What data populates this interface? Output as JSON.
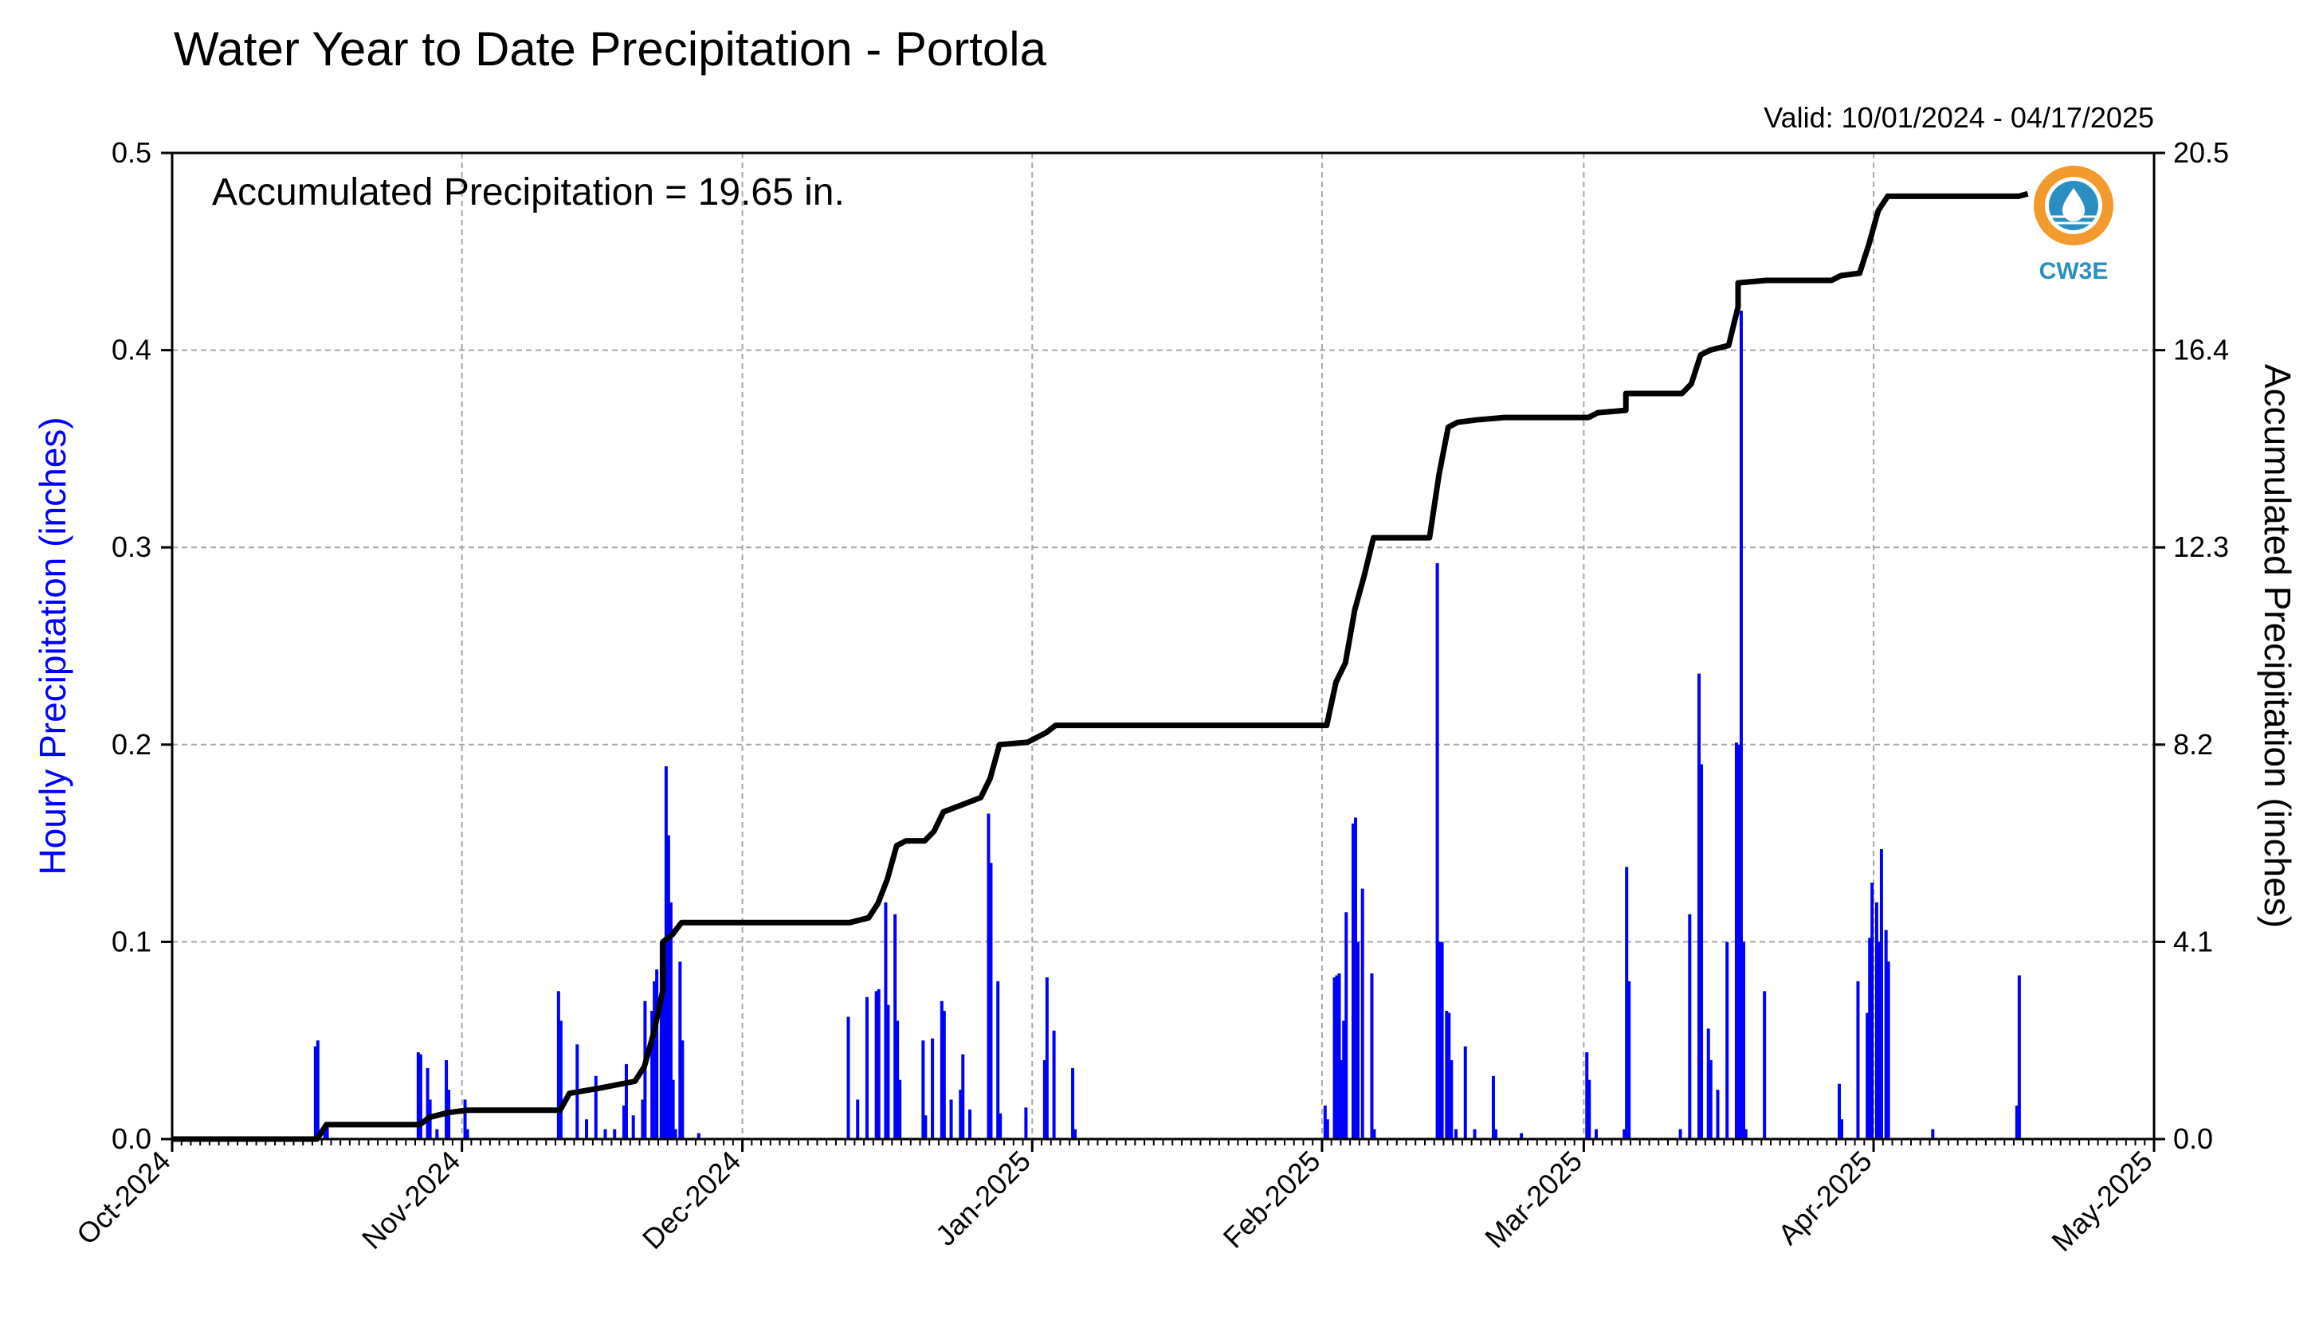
{
  "chart_data": {
    "type": "bar",
    "title": "Water Year to Date Precipitation - Portola",
    "valid_text": "Valid: 10/01/2024 - 04/17/2025",
    "annotation": "Accumulated Precipitation = 19.65 in.",
    "ylabel": "Hourly Precipitation (inches)",
    "y2label": "Accumulated Precipitation (inches)",
    "ylim": [
      0,
      0.5
    ],
    "y2lim": [
      0,
      20.5
    ],
    "yticks": [
      "0.0",
      "0.1",
      "0.2",
      "0.3",
      "0.4",
      "0.5"
    ],
    "y2ticks": [
      "0.0",
      "4.1",
      "8.2",
      "12.3",
      "16.4",
      "20.5"
    ],
    "xlim": [
      "2024-10-01",
      "2025-05-01"
    ],
    "xticks": [
      "Oct-2024",
      "Nov-2024",
      "Dec-2024",
      "Jan-2025",
      "Feb-2025",
      "Mar-2025",
      "Apr-2025",
      "May-2025"
    ],
    "grid": true,
    "bar_color": "#0000ff",
    "line_color": "#000000",
    "ylabel_color": "#0000ff",
    "logo_text": "CW3E",
    "series": [
      {
        "type": "bar",
        "points": [
          [
            "2024-10-16",
            0.047
          ],
          [
            "2024-10-16",
            0.05
          ],
          [
            "2024-10-17",
            0.005
          ],
          [
            "2024-10-17",
            0.008
          ],
          [
            "2024-10-27",
            0.044
          ],
          [
            "2024-10-27",
            0.043
          ],
          [
            "2024-10-28",
            0.036
          ],
          [
            "2024-10-28",
            0.02
          ],
          [
            "2024-10-29",
            0.005
          ],
          [
            "2024-10-30",
            0.04
          ],
          [
            "2024-10-30",
            0.025
          ],
          [
            "2024-11-01",
            0.02
          ],
          [
            "2024-11-01",
            0.005
          ],
          [
            "2024-11-11",
            0.075
          ],
          [
            "2024-11-11",
            0.06
          ],
          [
            "2024-11-13",
            0.048
          ],
          [
            "2024-11-14",
            0.01
          ],
          [
            "2024-11-15",
            0.032
          ],
          [
            "2024-11-16",
            0.005
          ],
          [
            "2024-11-17",
            0.005
          ],
          [
            "2024-11-18",
            0.017
          ],
          [
            "2024-11-18",
            0.038
          ],
          [
            "2024-11-19",
            0.012
          ],
          [
            "2024-11-20",
            0.02
          ],
          [
            "2024-11-20",
            0.07
          ],
          [
            "2024-11-21",
            0.065
          ],
          [
            "2024-11-21",
            0.08
          ],
          [
            "2024-11-21",
            0.086
          ],
          [
            "2024-11-22",
            0.1
          ],
          [
            "2024-11-22",
            0.09
          ],
          [
            "2024-11-22",
            0.189
          ],
          [
            "2024-11-22",
            0.154
          ],
          [
            "2024-11-22",
            0.12
          ],
          [
            "2024-11-23",
            0.06
          ],
          [
            "2024-11-23",
            0.03
          ],
          [
            "2024-11-23",
            0.005
          ],
          [
            "2024-11-24",
            0.09
          ],
          [
            "2024-11-24",
            0.05
          ],
          [
            "2024-11-26",
            0.003
          ],
          [
            "2024-12-12",
            0.062
          ],
          [
            "2024-12-13",
            0.02
          ],
          [
            "2024-12-14",
            0.072
          ],
          [
            "2024-12-15",
            0.075
          ],
          [
            "2024-12-15",
            0.076
          ],
          [
            "2024-12-16",
            0.12
          ],
          [
            "2024-12-16",
            0.068
          ],
          [
            "2024-12-17",
            0.114
          ],
          [
            "2024-12-17",
            0.06
          ],
          [
            "2024-12-17",
            0.03
          ],
          [
            "2024-12-20",
            0.05
          ],
          [
            "2024-12-20",
            0.012
          ],
          [
            "2024-12-21",
            0.051
          ],
          [
            "2024-12-22",
            0.07
          ],
          [
            "2024-12-22",
            0.065
          ],
          [
            "2024-12-23",
            0.02
          ],
          [
            "2024-12-24",
            0.025
          ],
          [
            "2024-12-24",
            0.043
          ],
          [
            "2024-12-25",
            0.015
          ],
          [
            "2024-12-27",
            0.165
          ],
          [
            "2024-12-27",
            0.14
          ],
          [
            "2024-12-28",
            0.08
          ],
          [
            "2024-12-28",
            0.013
          ],
          [
            "2024-12-31",
            0.016
          ],
          [
            "2025-01-02",
            0.04
          ],
          [
            "2025-01-02",
            0.082
          ],
          [
            "2025-01-03",
            0.055
          ],
          [
            "2025-01-05",
            0.036
          ],
          [
            "2025-01-05",
            0.005
          ],
          [
            "2025-02-01",
            0.017
          ],
          [
            "2025-02-01",
            0.01
          ],
          [
            "2025-02-02",
            0.082
          ],
          [
            "2025-02-02",
            0.083
          ],
          [
            "2025-02-02",
            0.084
          ],
          [
            "2025-02-02",
            0.04
          ],
          [
            "2025-02-03",
            0.06
          ],
          [
            "2025-02-03",
            0.115
          ],
          [
            "2025-02-04",
            0.16
          ],
          [
            "2025-02-04",
            0.163
          ],
          [
            "2025-02-04",
            0.1
          ],
          [
            "2025-02-05",
            0.127
          ],
          [
            "2025-02-06",
            0.084
          ],
          [
            "2025-02-06",
            0.005
          ],
          [
            "2025-02-13",
            0.292
          ],
          [
            "2025-02-13",
            0.1
          ],
          [
            "2025-02-13",
            0.1
          ],
          [
            "2025-02-14",
            0.065
          ],
          [
            "2025-02-14",
            0.064
          ],
          [
            "2025-02-14",
            0.04
          ],
          [
            "2025-02-15",
            0.005
          ],
          [
            "2025-02-16",
            0.047
          ],
          [
            "2025-02-17",
            0.005
          ],
          [
            "2025-02-19",
            0.032
          ],
          [
            "2025-02-19",
            0.005
          ],
          [
            "2025-02-22",
            0.003
          ],
          [
            "2025-03-01",
            0.044
          ],
          [
            "2025-03-01",
            0.03
          ],
          [
            "2025-03-02",
            0.005
          ],
          [
            "2025-03-05",
            0.005
          ],
          [
            "2025-03-05",
            0.138
          ],
          [
            "2025-03-05",
            0.08
          ],
          [
            "2025-03-11",
            0.005
          ],
          [
            "2025-03-12",
            0.114
          ],
          [
            "2025-03-13",
            0.236
          ],
          [
            "2025-03-13",
            0.19
          ],
          [
            "2025-03-14",
            0.056
          ],
          [
            "2025-03-14",
            0.04
          ],
          [
            "2025-03-15",
            0.025
          ],
          [
            "2025-03-16",
            0.1
          ],
          [
            "2025-03-17",
            0.201
          ],
          [
            "2025-03-17",
            0.2
          ],
          [
            "2025-03-17",
            0.42
          ],
          [
            "2025-03-17",
            0.1
          ],
          [
            "2025-03-18",
            0.005
          ],
          [
            "2025-03-20",
            0.075
          ],
          [
            "2025-03-28",
            0.028
          ],
          [
            "2025-03-28",
            0.01
          ],
          [
            "2025-03-30",
            0.08
          ],
          [
            "2025-03-31",
            0.064
          ],
          [
            "2025-03-31",
            0.102
          ],
          [
            "2025-03-31",
            0.13
          ],
          [
            "2025-04-01",
            0.12
          ],
          [
            "2025-04-01",
            0.1
          ],
          [
            "2025-04-01",
            0.147
          ],
          [
            "2025-04-02",
            0.106
          ],
          [
            "2025-04-02",
            0.09
          ],
          [
            "2025-04-07",
            0.005
          ],
          [
            "2025-04-16",
            0.017
          ],
          [
            "2025-04-16",
            0.083
          ]
        ]
      },
      {
        "type": "line",
        "points": [
          [
            "2024-10-01",
            0.0
          ],
          [
            "2024-10-16",
            0.0
          ],
          [
            "2024-10-17",
            0.3
          ],
          [
            "2024-10-27",
            0.3
          ],
          [
            "2024-10-28",
            0.45
          ],
          [
            "2024-10-30",
            0.55
          ],
          [
            "2024-11-01",
            0.6
          ],
          [
            "2024-11-11",
            0.6
          ],
          [
            "2024-11-12",
            0.95
          ],
          [
            "2024-11-15",
            1.05
          ],
          [
            "2024-11-19",
            1.2
          ],
          [
            "2024-11-20",
            1.5
          ],
          [
            "2024-11-21",
            2.2
          ],
          [
            "2024-11-22",
            3.1
          ],
          [
            "2024-11-22",
            4.1
          ],
          [
            "2024-11-23",
            4.25
          ],
          [
            "2024-11-24",
            4.5
          ],
          [
            "2024-12-12",
            4.5
          ],
          [
            "2024-12-14",
            4.6
          ],
          [
            "2024-12-15",
            4.9
          ],
          [
            "2024-12-16",
            5.4
          ],
          [
            "2024-12-17",
            6.1
          ],
          [
            "2024-12-18",
            6.2
          ],
          [
            "2024-12-20",
            6.2
          ],
          [
            "2024-12-21",
            6.4
          ],
          [
            "2024-12-22",
            6.8
          ],
          [
            "2024-12-24",
            6.95
          ],
          [
            "2024-12-26",
            7.1
          ],
          [
            "2024-12-27",
            7.5
          ],
          [
            "2024-12-28",
            8.2
          ],
          [
            "2024-12-31",
            8.25
          ],
          [
            "2025-01-02",
            8.45
          ],
          [
            "2025-01-03",
            8.6
          ],
          [
            "2025-01-05",
            8.6
          ],
          [
            "2025-02-01",
            8.6
          ],
          [
            "2025-02-02",
            9.5
          ],
          [
            "2025-02-03",
            9.9
          ],
          [
            "2025-02-04",
            11.0
          ],
          [
            "2025-02-05",
            11.7
          ],
          [
            "2025-02-06",
            12.5
          ],
          [
            "2025-02-10",
            12.5
          ],
          [
            "2025-02-12",
            12.5
          ],
          [
            "2025-02-13",
            13.8
          ],
          [
            "2025-02-14",
            14.8
          ],
          [
            "2025-02-15",
            14.9
          ],
          [
            "2025-02-17",
            14.95
          ],
          [
            "2025-02-20",
            15.0
          ],
          [
            "2025-03-01",
            15.0
          ],
          [
            "2025-03-02",
            15.1
          ],
          [
            "2025-03-05",
            15.15
          ],
          [
            "2025-03-05",
            15.5
          ],
          [
            "2025-03-11",
            15.5
          ],
          [
            "2025-03-12",
            15.7
          ],
          [
            "2025-03-13",
            16.3
          ],
          [
            "2025-03-14",
            16.4
          ],
          [
            "2025-03-16",
            16.5
          ],
          [
            "2025-03-17",
            17.3
          ],
          [
            "2025-03-17",
            17.8
          ],
          [
            "2025-03-20",
            17.85
          ],
          [
            "2025-03-27",
            17.85
          ],
          [
            "2025-03-28",
            17.95
          ],
          [
            "2025-03-30",
            18.0
          ],
          [
            "2025-03-31",
            18.6
          ],
          [
            "2025-04-01",
            19.3
          ],
          [
            "2025-04-02",
            19.6
          ],
          [
            "2025-04-16",
            19.6
          ],
          [
            "2025-04-17",
            19.65
          ]
        ]
      }
    ]
  }
}
